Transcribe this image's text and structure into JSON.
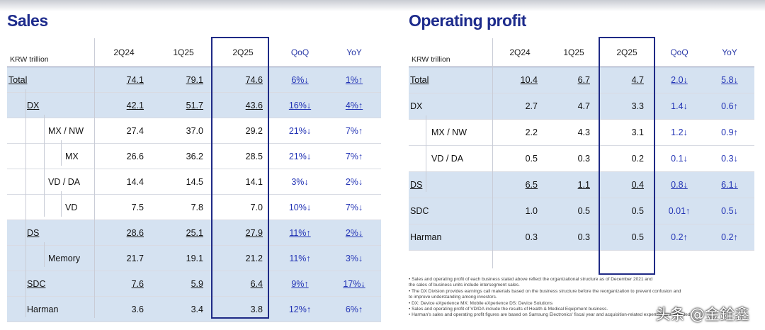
{
  "sales": {
    "title": "Sales",
    "unit": "KRW trillion",
    "columns": [
      "2Q24",
      "1Q25",
      "2Q25",
      "QoQ",
      "YoY"
    ],
    "rows": [
      {
        "label": "Total",
        "v": [
          "74.1",
          "79.1",
          "74.6",
          "6%↓",
          "1%↑"
        ]
      },
      {
        "label": "DX",
        "v": [
          "42.1",
          "51.7",
          "43.6",
          "16%↓",
          "4%↑"
        ]
      },
      {
        "label": "MX / NW",
        "v": [
          "27.4",
          "37.0",
          "29.2",
          "21%↓",
          "7%↑"
        ]
      },
      {
        "label": "MX",
        "v": [
          "26.6",
          "36.2",
          "28.5",
          "21%↓",
          "7%↑"
        ]
      },
      {
        "label": "VD / DA",
        "v": [
          "14.4",
          "14.5",
          "14.1",
          "3%↓",
          "2%↓"
        ]
      },
      {
        "label": "VD",
        "v": [
          "7.5",
          "7.8",
          "7.0",
          "10%↓",
          "7%↓"
        ]
      },
      {
        "label": "DS",
        "v": [
          "28.6",
          "25.1",
          "27.9",
          "11%↑",
          "2%↓"
        ]
      },
      {
        "label": "Memory",
        "v": [
          "21.7",
          "19.1",
          "21.2",
          "11%↑",
          "3%↓"
        ]
      },
      {
        "label": "SDC",
        "v": [
          "7.6",
          "5.9",
          "6.4",
          "9%↑",
          "17%↓"
        ]
      },
      {
        "label": "Harman",
        "v": [
          "3.6",
          "3.4",
          "3.8",
          "12%↑",
          "6%↑"
        ]
      }
    ]
  },
  "op": {
    "title": "Operating profit",
    "unit": "KRW trillion",
    "columns": [
      "2Q24",
      "1Q25",
      "2Q25",
      "QoQ",
      "YoY"
    ],
    "rows": [
      {
        "label": "Total",
        "v": [
          "10.4",
          "6.7",
          "4.7",
          "2.0↓",
          "5.8↓"
        ]
      },
      {
        "label": "DX",
        "v": [
          "2.7",
          "4.7",
          "3.3",
          "1.4↓",
          "0.6↑"
        ]
      },
      {
        "label": "MX / NW",
        "v": [
          "2.2",
          "4.3",
          "3.1",
          "1.2↓",
          "0.9↑"
        ]
      },
      {
        "label": "VD / DA",
        "v": [
          "0.5",
          "0.3",
          "0.2",
          "0.1↓",
          "0.3↓"
        ]
      },
      {
        "label": "DS",
        "v": [
          "6.5",
          "1.1",
          "0.4",
          "0.8↓",
          "6.1↓"
        ]
      },
      {
        "label": "SDC",
        "v": [
          "1.0",
          "0.5",
          "0.5",
          "0.01↑",
          "0.5↓"
        ]
      },
      {
        "label": "Harman",
        "v": [
          "0.3",
          "0.3",
          "0.5",
          "0.2↑",
          "0.2↑"
        ]
      }
    ],
    "notes": [
      "• Sales and operating profit of each business stated above reflect the organizational structure as of December 2021 and",
      "  the sales of business units include intersegment sales.",
      "• The DX Division provides earnings call materials based on the business structure before the reorganization to prevent confusion and",
      "  to improve understanding among investors.",
      "• DX: Device eXperience MX: Mobile eXperience DS: Device Solutions",
      "• Sales and operating profit of VD/DA include the results of Health & Medical Equipment business.",
      "• Harman's sales and operating profit figures are based on Samsung Electronics' fiscal year and acquisition-related expenses are reflected."
    ]
  },
  "watermark": "头条 @金銓鑫"
}
